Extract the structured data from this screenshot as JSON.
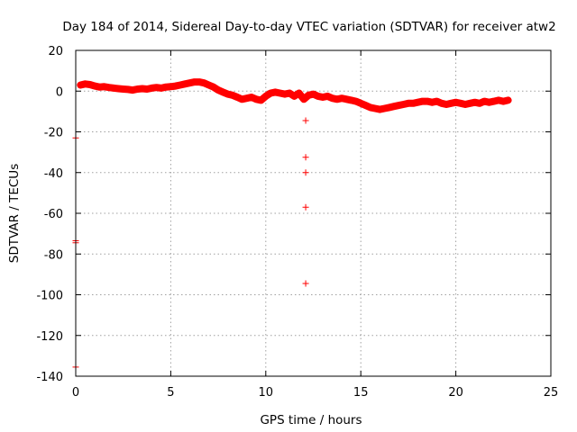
{
  "chart_data": {
    "type": "scatter",
    "title": "Day 184 of 2014, Sidereal Day-to-day VTEC variation (SDTVAR) for receiver atw2",
    "xlabel": "GPS time / hours",
    "ylabel": "SDTVAR / TECUs",
    "xlim": [
      0,
      25
    ],
    "ylim": [
      -140,
      20
    ],
    "xticks": [
      0,
      5,
      10,
      15,
      20,
      25
    ],
    "yticks": [
      -140,
      -120,
      -100,
      -80,
      -60,
      -40,
      -20,
      0,
      20
    ],
    "grid": true,
    "marker": "+",
    "color": "#ff0000",
    "series": [
      {
        "name": "SDTVAR",
        "main_trace": [
          [
            0.25,
            3.0
          ],
          [
            0.5,
            3.5
          ],
          [
            0.75,
            3.2
          ],
          [
            1.0,
            2.5
          ],
          [
            1.25,
            2.0
          ],
          [
            1.5,
            2.2
          ],
          [
            1.75,
            1.8
          ],
          [
            2.0,
            1.5
          ],
          [
            2.25,
            1.2
          ],
          [
            2.5,
            1.0
          ],
          [
            2.75,
            0.8
          ],
          [
            3.0,
            0.5
          ],
          [
            3.25,
            1.0
          ],
          [
            3.5,
            1.2
          ],
          [
            3.75,
            1.0
          ],
          [
            4.0,
            1.5
          ],
          [
            4.25,
            1.8
          ],
          [
            4.5,
            1.5
          ],
          [
            4.75,
            2.0
          ],
          [
            5.0,
            2.2
          ],
          [
            5.25,
            2.5
          ],
          [
            5.5,
            3.0
          ],
          [
            5.75,
            3.5
          ],
          [
            6.0,
            4.0
          ],
          [
            6.25,
            4.5
          ],
          [
            6.5,
            4.5
          ],
          [
            6.75,
            4.0
          ],
          [
            7.0,
            3.0
          ],
          [
            7.25,
            2.0
          ],
          [
            7.5,
            0.5
          ],
          [
            7.75,
            -0.5
          ],
          [
            8.0,
            -1.5
          ],
          [
            8.25,
            -2.0
          ],
          [
            8.5,
            -3.0
          ],
          [
            8.75,
            -4.0
          ],
          [
            9.0,
            -3.5
          ],
          [
            9.25,
            -3.0
          ],
          [
            9.5,
            -4.0
          ],
          [
            9.75,
            -4.5
          ],
          [
            10.0,
            -2.5
          ],
          [
            10.25,
            -1.0
          ],
          [
            10.5,
            -0.5
          ],
          [
            10.75,
            -1.0
          ],
          [
            11.0,
            -1.5
          ],
          [
            11.25,
            -1.0
          ],
          [
            11.5,
            -2.5
          ],
          [
            11.75,
            -1.0
          ],
          [
            12.0,
            -4.0
          ],
          [
            12.25,
            -2.0
          ],
          [
            12.5,
            -1.5
          ],
          [
            12.75,
            -2.5
          ],
          [
            13.0,
            -3.0
          ],
          [
            13.25,
            -2.5
          ],
          [
            13.5,
            -3.5
          ],
          [
            13.75,
            -4.0
          ],
          [
            14.0,
            -3.5
          ],
          [
            14.25,
            -4.0
          ],
          [
            14.5,
            -4.5
          ],
          [
            14.75,
            -5.0
          ],
          [
            15.0,
            -6.0
          ],
          [
            15.25,
            -7.0
          ],
          [
            15.5,
            -8.0
          ],
          [
            15.75,
            -8.5
          ],
          [
            16.0,
            -9.0
          ],
          [
            16.25,
            -8.5
          ],
          [
            16.5,
            -8.0
          ],
          [
            16.75,
            -7.5
          ],
          [
            17.0,
            -7.0
          ],
          [
            17.25,
            -6.5
          ],
          [
            17.5,
            -6.0
          ],
          [
            17.75,
            -6.0
          ],
          [
            18.0,
            -5.5
          ],
          [
            18.25,
            -5.0
          ],
          [
            18.5,
            -5.0
          ],
          [
            18.75,
            -5.5
          ],
          [
            19.0,
            -5.0
          ],
          [
            19.25,
            -6.0
          ],
          [
            19.5,
            -6.5
          ],
          [
            19.75,
            -6.0
          ],
          [
            20.0,
            -5.5
          ],
          [
            20.25,
            -6.0
          ],
          [
            20.5,
            -6.5
          ],
          [
            20.75,
            -6.0
          ],
          [
            21.0,
            -5.5
          ],
          [
            21.25,
            -6.0
          ],
          [
            21.5,
            -5.0
          ],
          [
            21.75,
            -5.5
          ],
          [
            22.0,
            -5.0
          ],
          [
            22.25,
            -4.5
          ],
          [
            22.5,
            -5.0
          ],
          [
            22.75,
            -4.5
          ]
        ],
        "outliers": [
          [
            0.0,
            -23.0
          ],
          [
            0.0,
            -73.5
          ],
          [
            0.0,
            -74.5
          ],
          [
            0.0,
            -135.5
          ],
          [
            12.1,
            -14.5
          ],
          [
            12.1,
            -32.5
          ],
          [
            12.1,
            -40.0
          ],
          [
            12.1,
            -57.0
          ],
          [
            12.1,
            -94.5
          ]
        ]
      }
    ]
  }
}
